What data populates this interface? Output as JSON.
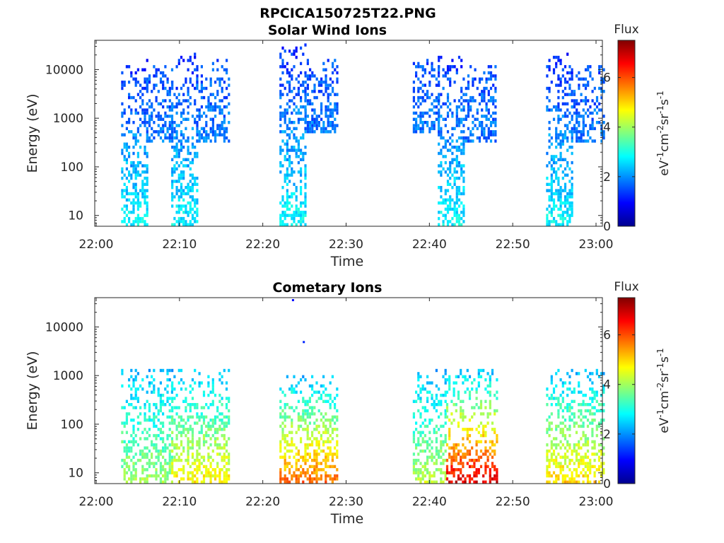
{
  "figure_title": "RPCICA150725T22.PNG",
  "chart_data": [
    {
      "type": "heatmap",
      "title": "Solar Wind Ions",
      "xlabel": "Time",
      "ylabel": "Energy (eV)",
      "x_ticks": [
        "22:00",
        "22:10",
        "22:20",
        "22:30",
        "22:40",
        "22:50",
        "23:00"
      ],
      "y_scale": "log",
      "y_ticks": [
        "10",
        "100",
        "1000",
        "10000"
      ],
      "ylim": [
        6,
        40000
      ],
      "xlim": [
        "22:00",
        "23:00"
      ],
      "colorbar": {
        "title": "Flux",
        "units": "eV-1cm-2sr-1s-1",
        "range": [
          0,
          7.5
        ],
        "ticks": [
          "0",
          "2",
          "4",
          "6"
        ],
        "colormap": "jet"
      },
      "bursts": [
        {
          "start": "22:03",
          "end": "22:06",
          "emin": 6,
          "emax": 15000,
          "flux_low": 2.8,
          "flux_high": 1.2
        },
        {
          "start": "22:06",
          "end": "22:09",
          "emin": 300,
          "emax": 12000,
          "flux_low": 1.8,
          "flux_high": 1.5
        },
        {
          "start": "22:09",
          "end": "22:12",
          "emin": 6,
          "emax": 20000,
          "flux_low": 2.8,
          "flux_high": 1.2
        },
        {
          "start": "22:12",
          "end": "22:16",
          "emin": 300,
          "emax": 15000,
          "flux_low": 1.8,
          "flux_high": 1.5
        },
        {
          "start": "22:22",
          "end": "22:25",
          "emin": 6,
          "emax": 30000,
          "flux_low": 2.8,
          "flux_high": 1.2
        },
        {
          "start": "22:25",
          "end": "22:29",
          "emin": 500,
          "emax": 15000,
          "flux_low": 1.8,
          "flux_high": 1.5
        },
        {
          "start": "22:38",
          "end": "22:41",
          "emin": 500,
          "emax": 15000,
          "flux_low": 1.8,
          "flux_high": 1.5
        },
        {
          "start": "22:41",
          "end": "22:44",
          "emin": 6,
          "emax": 18000,
          "flux_low": 2.8,
          "flux_high": 1.2
        },
        {
          "start": "22:44",
          "end": "22:48",
          "emin": 300,
          "emax": 12000,
          "flux_low": 1.8,
          "flux_high": 1.5
        },
        {
          "start": "22:54",
          "end": "22:57",
          "emin": 6,
          "emax": 20000,
          "flux_low": 2.8,
          "flux_high": 1.2
        },
        {
          "start": "22:57",
          "end": "23:01",
          "emin": 300,
          "emax": 12000,
          "flux_low": 1.8,
          "flux_high": 1.5
        }
      ]
    },
    {
      "type": "heatmap",
      "title": "Cometary Ions",
      "xlabel": "Time",
      "ylabel": "Energy (eV)",
      "x_ticks": [
        "22:00",
        "22:10",
        "22:20",
        "22:30",
        "22:40",
        "22:50",
        "23:00"
      ],
      "y_scale": "log",
      "y_ticks": [
        "10",
        "100",
        "1000",
        "10000"
      ],
      "ylim": [
        6,
        40000
      ],
      "xlim": [
        "22:00",
        "23:00"
      ],
      "colorbar": {
        "title": "Flux",
        "units": "eV-1cm-2sr-1s-1",
        "range": [
          0,
          7.5
        ],
        "ticks": [
          "0",
          "2",
          "4",
          "6"
        ],
        "colormap": "jet"
      },
      "bursts": [
        {
          "start": "22:03",
          "end": "22:09",
          "emin": 6,
          "emax": 1200,
          "flux_low": 4.0,
          "flux_high": 2.3
        },
        {
          "start": "22:09",
          "end": "22:16",
          "emin": 6,
          "emax": 1200,
          "flux_low": 4.8,
          "flux_high": 2.3
        },
        {
          "start": "22:22",
          "end": "22:29",
          "emin": 6,
          "emax": 900,
          "flux_low": 5.8,
          "flux_high": 2.3
        },
        {
          "start": "22:38",
          "end": "22:42",
          "emin": 6,
          "emax": 1200,
          "flux_low": 4.2,
          "flux_high": 2.3
        },
        {
          "start": "22:42",
          "end": "22:48",
          "emin": 6,
          "emax": 1200,
          "flux_low": 6.8,
          "flux_high": 2.3
        },
        {
          "start": "22:54",
          "end": "23:01",
          "emin": 6,
          "emax": 1200,
          "flux_low": 5.0,
          "flux_high": 2.3
        }
      ],
      "isolated_points": [
        {
          "time": "22:23.5",
          "energy": 35000,
          "flux": 1.0
        },
        {
          "time": "22:24.8",
          "energy": 4800,
          "flux": 1.2
        }
      ]
    }
  ]
}
